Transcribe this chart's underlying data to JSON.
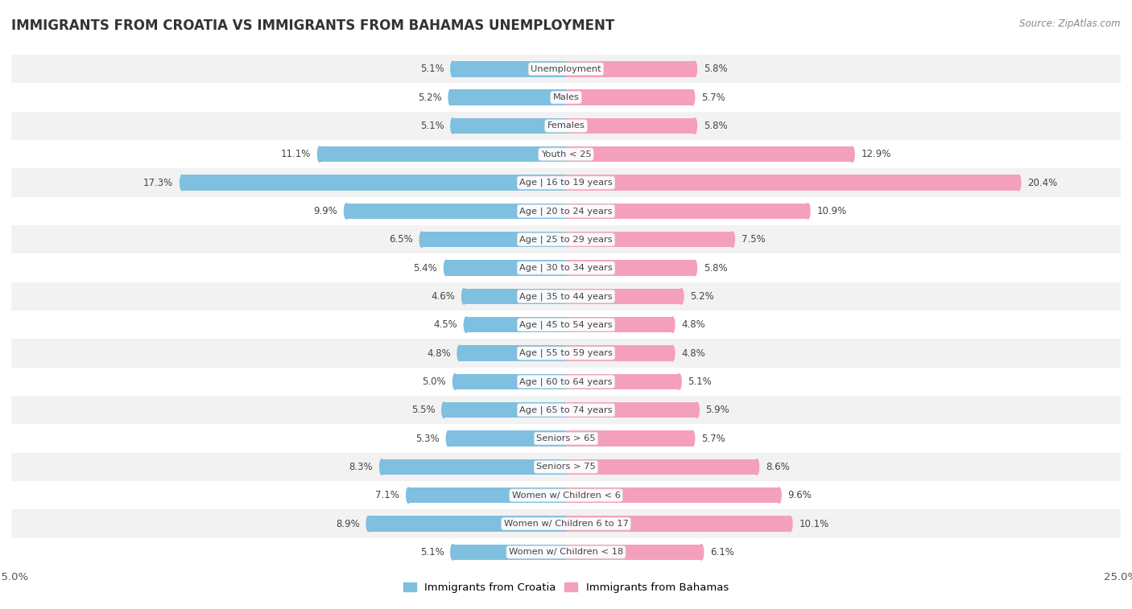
{
  "title": "IMMIGRANTS FROM CROATIA VS IMMIGRANTS FROM BAHAMAS UNEMPLOYMENT",
  "source": "Source: ZipAtlas.com",
  "categories": [
    "Unemployment",
    "Males",
    "Females",
    "Youth < 25",
    "Age | 16 to 19 years",
    "Age | 20 to 24 years",
    "Age | 25 to 29 years",
    "Age | 30 to 34 years",
    "Age | 35 to 44 years",
    "Age | 45 to 54 years",
    "Age | 55 to 59 years",
    "Age | 60 to 64 years",
    "Age | 65 to 74 years",
    "Seniors > 65",
    "Seniors > 75",
    "Women w/ Children < 6",
    "Women w/ Children 6 to 17",
    "Women w/ Children < 18"
  ],
  "croatia_values": [
    5.1,
    5.2,
    5.1,
    11.1,
    17.3,
    9.9,
    6.5,
    5.4,
    4.6,
    4.5,
    4.8,
    5.0,
    5.5,
    5.3,
    8.3,
    7.1,
    8.9,
    5.1
  ],
  "bahamas_values": [
    5.8,
    5.7,
    5.8,
    12.9,
    20.4,
    10.9,
    7.5,
    5.8,
    5.2,
    4.8,
    4.8,
    5.1,
    5.9,
    5.7,
    8.6,
    9.6,
    10.1,
    6.1
  ],
  "croatia_color": "#7fbfdf",
  "bahamas_color": "#f4a0bb",
  "row_color_odd": "#f2f2f2",
  "row_color_even": "#ffffff",
  "xlim": 25.0,
  "bar_height": 0.55,
  "legend_croatia": "Immigrants from Croatia",
  "legend_bahamas": "Immigrants from Bahamas"
}
